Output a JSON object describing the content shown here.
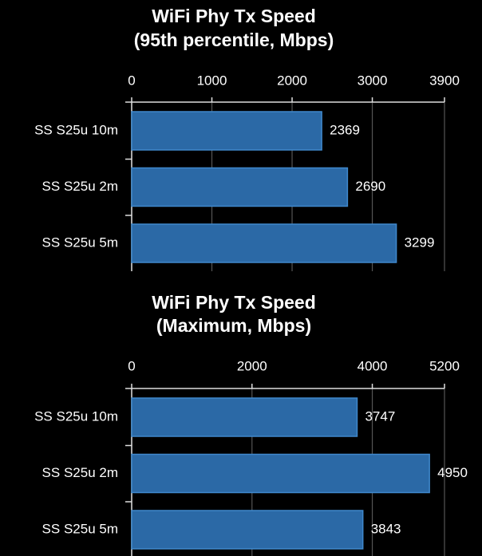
{
  "chart_data": [
    {
      "type": "barh",
      "title": "WiFi Phy Tx Speed",
      "subtitle": "(95th percentile, Mbps)",
      "categories": [
        "SS S25u 10m",
        "SS S25u 2m",
        "SS S25u 5m"
      ],
      "values": [
        2369,
        2690,
        3299
      ],
      "color": "#2b69a6",
      "xlim": [
        0,
        3900
      ],
      "xticks": [
        0,
        1000,
        2000,
        3000,
        3900
      ],
      "grid": true
    },
    {
      "type": "barh",
      "title": "WiFi Phy Tx Speed",
      "subtitle": "(Maximum, Mbps)",
      "categories": [
        "SS S25u 10m",
        "SS S25u 2m",
        "SS S25u 5m"
      ],
      "values": [
        3747,
        4950,
        3843
      ],
      "color": "#2b69a6",
      "xlim": [
        0,
        5200
      ],
      "xticks": [
        0,
        2000,
        4000,
        5200
      ],
      "grid": true
    }
  ]
}
